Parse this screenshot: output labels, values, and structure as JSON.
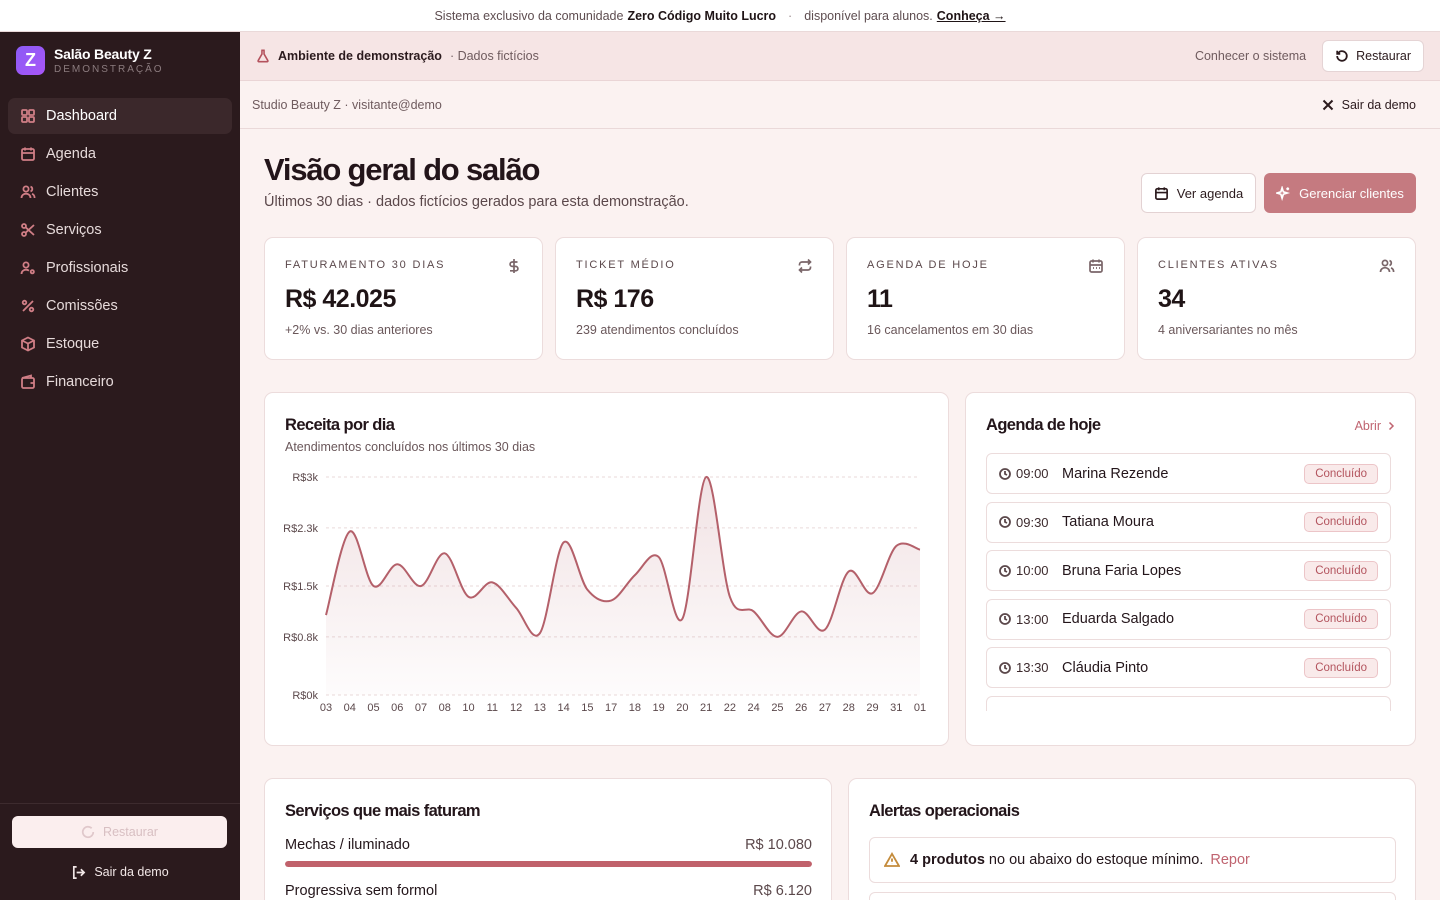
{
  "banner": {
    "prefix": "Sistema exclusivo da comunidade",
    "community": "Zero Código Muito Lucro",
    "dot": "·",
    "suffix": "disponível para alunos.",
    "link": "Conheça →"
  },
  "brand": {
    "name": "Salão Beauty Z",
    "sub": "DEMONSTRAÇÃO",
    "logo_letter": "Z"
  },
  "nav": [
    {
      "label": "Dashboard",
      "icon": "layout-grid-icon",
      "active": true
    },
    {
      "label": "Agenda",
      "icon": "calendar-icon"
    },
    {
      "label": "Clientes",
      "icon": "users-icon"
    },
    {
      "label": "Serviços",
      "icon": "scissors-icon"
    },
    {
      "label": "Profissionais",
      "icon": "user-cog-icon"
    },
    {
      "label": "Comissões",
      "icon": "percent-icon"
    },
    {
      "label": "Estoque",
      "icon": "package-icon"
    },
    {
      "label": "Financeiro",
      "icon": "wallet-icon"
    }
  ],
  "sidebar_footer": {
    "restore": "Restaurar",
    "logout": "Sair da demo"
  },
  "demo_bar": {
    "env": "Ambiente de demonstração",
    "fict": "· Dados fictícios",
    "know": "Conhecer o sistema",
    "restore": "Restaurar"
  },
  "context": {
    "user": "Studio Beauty Z · visitante@demo",
    "logout": "Sair da demo"
  },
  "header": {
    "title": "Visão geral do salão",
    "subtitle": "Últimos 30 dias · dados fictícios gerados para esta demonstração.",
    "btn_agenda": "Ver agenda",
    "btn_clientes": "Gerenciar clientes"
  },
  "kpis": [
    {
      "label": "FATURAMENTO 30 DIAS",
      "value": "R$ 42.025",
      "note": "+2% vs. 30 dias anteriores",
      "icon": "dollar-icon"
    },
    {
      "label": "TICKET MÉDIO",
      "value": "R$ 176",
      "note": "239 atendimentos concluídos",
      "icon": "repeat-icon"
    },
    {
      "label": "AGENDA DE HOJE",
      "value": "11",
      "note": "16 cancelamentos em 30 dias",
      "icon": "calendar-icon"
    },
    {
      "label": "CLIENTES ATIVAS",
      "value": "34",
      "note": "4 aniversariantes no mês",
      "icon": "users-icon"
    }
  ],
  "revenue_card": {
    "title": "Receita por dia",
    "subtitle": "Atendimentos concluídos nos últimos 30 dias"
  },
  "chart_data": {
    "type": "area",
    "title": "Receita por dia",
    "subtitle": "Atendimentos concluídos nos últimos 30 dias",
    "x": [
      "03",
      "04",
      "05",
      "06",
      "07",
      "08",
      "10",
      "11",
      "12",
      "13",
      "14",
      "15",
      "17",
      "18",
      "19",
      "20",
      "21",
      "22",
      "24",
      "25",
      "26",
      "27",
      "28",
      "29",
      "31",
      "01"
    ],
    "y": [
      1100,
      2250,
      1500,
      1800,
      1500,
      1950,
      1350,
      1550,
      1200,
      850,
      2100,
      1450,
      1300,
      1650,
      1900,
      1050,
      3000,
      1350,
      1150,
      800,
      1150,
      900,
      1700,
      1400,
      2050,
      2000
    ],
    "y_ticks": [
      "R$0k",
      "R$0.8k",
      "R$1.5k",
      "R$2.3k",
      "R$3k"
    ],
    "y_tick_values": [
      0,
      800,
      1500,
      2300,
      3000
    ],
    "ylim": [
      0,
      3000
    ],
    "grid": true,
    "color": "#b4606a"
  },
  "agenda": {
    "title": "Agenda de hoje",
    "open": "Abrir",
    "items": [
      {
        "time": "09:00",
        "name": "Marina Rezende",
        "status": "Concluído"
      },
      {
        "time": "09:30",
        "name": "Tatiana Moura",
        "status": "Concluído"
      },
      {
        "time": "10:00",
        "name": "Bruna Faria Lopes",
        "status": "Concluído"
      },
      {
        "time": "13:00",
        "name": "Eduarda Salgado",
        "status": "Concluído"
      },
      {
        "time": "13:30",
        "name": "Cláudia Pinto",
        "status": "Concluído"
      }
    ]
  },
  "services": {
    "title": "Serviços que mais faturam",
    "items": [
      {
        "name": "Mechas / iluminado",
        "value": "R$ 10.080",
        "share": 1.0
      },
      {
        "name": "Progressiva sem formol",
        "value": "R$ 6.120",
        "share": 0.61
      }
    ]
  },
  "alerts": {
    "title": "Alertas operacionais",
    "items": [
      {
        "strong": "4 produtos",
        "text": "no ou abaixo do estoque mínimo.",
        "link": "Repor"
      }
    ]
  }
}
